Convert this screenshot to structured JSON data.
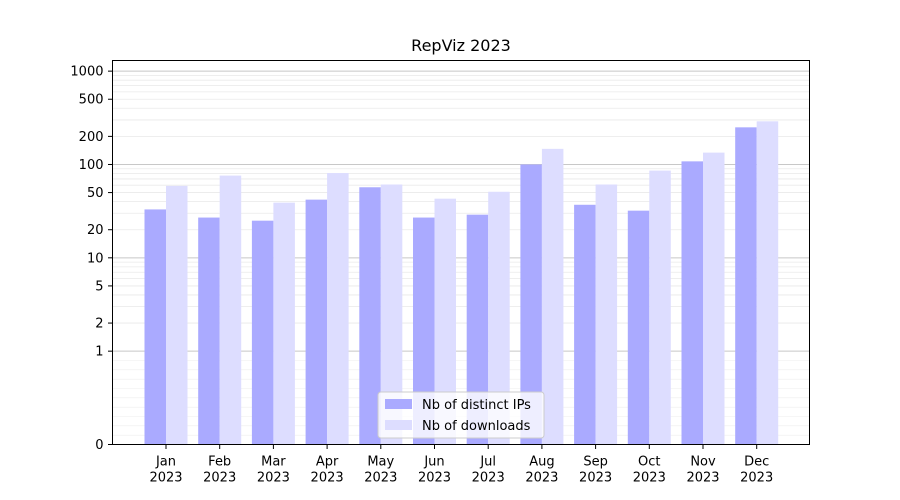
{
  "chart_data": {
    "type": "bar",
    "title": "RepViz 2023",
    "xlabel": "",
    "ylabel": "",
    "yscale": "symlog",
    "ylim": [
      0,
      1300
    ],
    "categories": [
      [
        "Jan",
        "2023"
      ],
      [
        "Feb",
        "2023"
      ],
      [
        "Mar",
        "2023"
      ],
      [
        "Apr",
        "2023"
      ],
      [
        "May",
        "2023"
      ],
      [
        "Jun",
        "2023"
      ],
      [
        "Jul",
        "2023"
      ],
      [
        "Aug",
        "2023"
      ],
      [
        "Sep",
        "2023"
      ],
      [
        "Oct",
        "2023"
      ],
      [
        "Nov",
        "2023"
      ],
      [
        "Dec",
        "2023"
      ]
    ],
    "series": [
      {
        "name": "Nb of distinct IPs",
        "color": "#aaaaff",
        "values": [
          33,
          27,
          25,
          42,
          57,
          27,
          29,
          100,
          37,
          32,
          108,
          250
        ]
      },
      {
        "name": "Nb of downloads",
        "color": "#ddddff",
        "values": [
          59,
          76,
          39,
          81,
          61,
          43,
          51,
          147,
          61,
          86,
          134,
          290
        ]
      }
    ],
    "yticks": [
      0,
      1,
      2,
      5,
      10,
      20,
      50,
      100,
      200,
      500,
      1000
    ],
    "major_grid": [
      1,
      10,
      100,
      1000
    ],
    "minor_grid": true,
    "legend_position": "bottom-center"
  }
}
